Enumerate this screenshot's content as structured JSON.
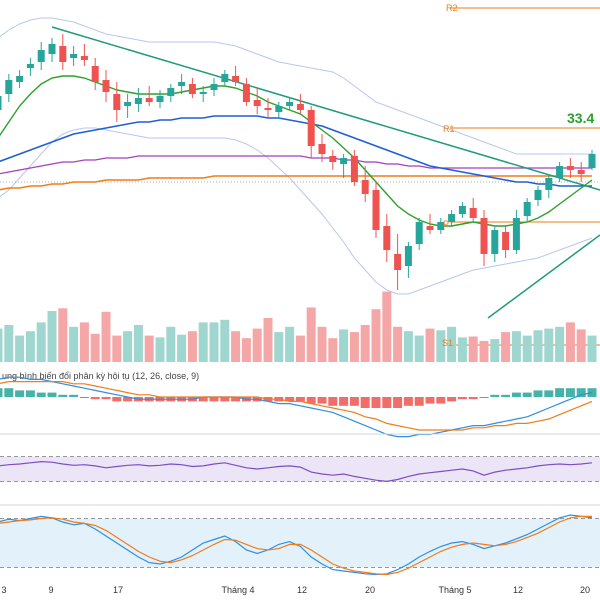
{
  "chart_data": {
    "type": "candlestick",
    "x_ticks": [
      "3",
      "9",
      "17",
      "Tháng 4",
      "12",
      "20",
      "Tháng 5",
      "12",
      "20"
    ],
    "colors": {
      "up": "#26a69a",
      "down": "#ef5350",
      "vol_up": "#9fd6cf",
      "vol_down": "#f4a7a6",
      "ma_short": "#2ca02c",
      "ma_mid": "#1f5fd6",
      "ma_long": "#a43fbf",
      "ma_200": "#ef7d1a",
      "bands": "#b9c6ef",
      "trend": "#1f9a7a",
      "pivot": "#ef7d1a",
      "macd_line": "#2f8fe0",
      "signal_line": "#ef7d1a",
      "rsi": "#7a4fc3",
      "rsi_band": "#ece4f7",
      "stoch_band": "#e3f1fb"
    },
    "pivot_labels": {
      "r2": "R2",
      "r1": "R1",
      "p": "P",
      "s1": "S1"
    },
    "price_label": "33.4",
    "macd_title": "ung bình biến đổi phân kỳ hội tụ (12, 26, close, 9)",
    "candles": [
      [
        84,
        96,
        80,
        91
      ],
      [
        92,
        102,
        88,
        99
      ],
      [
        98,
        104,
        95,
        101
      ],
      [
        105,
        110,
        101,
        107
      ],
      [
        108,
        118,
        104,
        114
      ],
      [
        112,
        120,
        108,
        117
      ],
      [
        116,
        122,
        104,
        108
      ],
      [
        110,
        116,
        106,
        112
      ],
      [
        111,
        117,
        106,
        109
      ],
      [
        106,
        110,
        94,
        98
      ],
      [
        99,
        104,
        88,
        93
      ],
      [
        92,
        98,
        78,
        84
      ],
      [
        86,
        92,
        80,
        88
      ],
      [
        87,
        95,
        83,
        90
      ],
      [
        90,
        96,
        86,
        88
      ],
      [
        88,
        94,
        85,
        91
      ],
      [
        91,
        97,
        88,
        95
      ],
      [
        96,
        102,
        92,
        98
      ],
      [
        97,
        100,
        90,
        92
      ],
      [
        92,
        96,
        88,
        93
      ],
      [
        94,
        100,
        91,
        97
      ],
      [
        98,
        104,
        96,
        102
      ],
      [
        101,
        106,
        96,
        98
      ],
      [
        97,
        100,
        86,
        88
      ],
      [
        89,
        95,
        82,
        86
      ],
      [
        85,
        90,
        80,
        84
      ],
      [
        83,
        88,
        80,
        86
      ],
      [
        86,
        90,
        84,
        88
      ],
      [
        87,
        92,
        82,
        84
      ],
      [
        84,
        86,
        60,
        66
      ],
      [
        67,
        72,
        58,
        62
      ],
      [
        61,
        64,
        54,
        58
      ],
      [
        57,
        62,
        50,
        60
      ],
      [
        61,
        64,
        46,
        48
      ],
      [
        49,
        56,
        38,
        42
      ],
      [
        44,
        48,
        20,
        24
      ],
      [
        26,
        32,
        8,
        14
      ],
      [
        12,
        22,
        -6,
        4
      ],
      [
        6,
        18,
        0,
        16
      ],
      [
        17,
        30,
        14,
        28
      ],
      [
        26,
        32,
        22,
        24
      ],
      [
        24,
        30,
        22,
        28
      ],
      [
        28,
        34,
        26,
        32
      ],
      [
        32,
        38,
        30,
        36
      ],
      [
        35,
        40,
        28,
        30
      ],
      [
        30,
        34,
        6,
        12
      ],
      [
        12,
        26,
        8,
        24
      ],
      [
        23,
        26,
        10,
        14
      ],
      [
        14,
        34,
        12,
        30
      ],
      [
        31,
        40,
        28,
        38
      ],
      [
        39,
        46,
        36,
        44
      ],
      [
        44,
        52,
        40,
        50
      ],
      [
        50,
        58,
        48,
        56
      ],
      [
        56,
        60,
        50,
        54
      ],
      [
        54,
        58,
        48,
        52
      ],
      [
        55,
        64,
        54,
        62
      ]
    ],
    "volume": [
      38,
      42,
      30,
      35,
      45,
      58,
      61,
      40,
      45,
      32,
      57,
      30,
      35,
      42,
      30,
      28,
      40,
      31,
      35,
      45,
      45,
      48,
      35,
      27,
      38,
      50,
      34,
      40,
      30,
      62,
      40,
      27,
      37,
      34,
      42,
      60,
      80,
      40,
      35,
      30,
      38,
      36,
      40,
      28,
      29,
      24,
      26,
      34,
      35,
      30,
      36,
      38,
      40,
      45,
      37,
      30
    ],
    "ma_short": [
      70,
      78,
      86,
      92,
      97,
      100,
      101,
      101,
      100,
      98,
      96,
      94,
      93,
      92,
      92,
      92,
      92,
      93,
      94,
      95,
      96,
      96,
      95,
      93,
      91,
      88,
      86,
      84,
      82,
      78,
      74,
      70,
      65,
      60,
      54,
      48,
      42,
      36,
      32,
      29,
      27,
      26,
      26,
      27,
      28,
      27,
      26,
      26,
      27,
      28,
      30,
      33,
      37,
      41,
      45,
      49
    ],
    "ma_mid": [
      58,
      60,
      62,
      64,
      66,
      68,
      70,
      72,
      73,
      74,
      75,
      76,
      77,
      78,
      78,
      79,
      79,
      80,
      80,
      80,
      81,
      81,
      81,
      81,
      81,
      80,
      80,
      79,
      78,
      77,
      76,
      74,
      72,
      70,
      68,
      66,
      64,
      62,
      60,
      58,
      56,
      55,
      54,
      53,
      52,
      51,
      50,
      49,
      48,
      48,
      47,
      47,
      46,
      46,
      46,
      46
    ],
    "ma_long": [
      52,
      53,
      54,
      55,
      56,
      57,
      58,
      58,
      59,
      59,
      60,
      60,
      60,
      61,
      61,
      61,
      61,
      61,
      61,
      61,
      61,
      61,
      61,
      61,
      61,
      61,
      61,
      61,
      61,
      60,
      60,
      60,
      59,
      59,
      58,
      58,
      57,
      57,
      56,
      56,
      55,
      55,
      55,
      55,
      55,
      55,
      55,
      55,
      55,
      55,
      55,
      55,
      55,
      55,
      55,
      55
    ],
    "ma_200": [
      44,
      45,
      45,
      46,
      46,
      47,
      47,
      48,
      48,
      48,
      49,
      49,
      49,
      49,
      50,
      50,
      50,
      50,
      50,
      50,
      51,
      51,
      51,
      51,
      51,
      51,
      51,
      51,
      51,
      51,
      51,
      51,
      51,
      51,
      51,
      51,
      51,
      51,
      51,
      51,
      51,
      51,
      51,
      51,
      51,
      51,
      51,
      51,
      51,
      51,
      51,
      51,
      51,
      51,
      51,
      51
    ],
    "band_upper": [
      120,
      124,
      127,
      129,
      130,
      130,
      129,
      128,
      126,
      124,
      122,
      121,
      120,
      119,
      118,
      118,
      118,
      118,
      118,
      118,
      118,
      117,
      116,
      114,
      112,
      110,
      108,
      107,
      106,
      105,
      104,
      103,
      100,
      96,
      92,
      88,
      86,
      84,
      82,
      80,
      78,
      76,
      74,
      72,
      70,
      68,
      66,
      64,
      62,
      62,
      62,
      62,
      62,
      62,
      62,
      62
    ],
    "band_lower": [
      40,
      44,
      50,
      56,
      62,
      68,
      72,
      74,
      75,
      75,
      74,
      73,
      72,
      71,
      70,
      70,
      70,
      70,
      70,
      70,
      70,
      70,
      69,
      67,
      64,
      60,
      55,
      50,
      44,
      38,
      32,
      25,
      18,
      10,
      4,
      -2,
      -6,
      -8,
      -8,
      -6,
      -4,
      -2,
      0,
      2,
      4,
      5,
      6,
      7,
      8,
      9,
      10,
      12,
      14,
      16,
      18,
      20
    ],
    "macd_hist": [
      4,
      4,
      3,
      3,
      2,
      2,
      1,
      1,
      0,
      -1,
      -1,
      -2,
      -2,
      -2,
      -2,
      -2,
      -2,
      -2,
      -2,
      -2,
      -2,
      -2,
      -2,
      -2,
      -2,
      -2,
      -2,
      -2,
      -2,
      -3,
      -3,
      -4,
      -4,
      -4,
      -5,
      -5,
      -5,
      -5,
      -4,
      -4,
      -3,
      -3,
      -2,
      -1,
      -1,
      0,
      1,
      1,
      2,
      2,
      3,
      3,
      4,
      4,
      4,
      4
    ],
    "macd_line": [
      8,
      9,
      9,
      8,
      8,
      7,
      6,
      5,
      4,
      3,
      2,
      1,
      0,
      -1,
      -1,
      -1,
      -1,
      -1,
      -1,
      0,
      0,
      0,
      0,
      -1,
      -1,
      -2,
      -3,
      -3,
      -4,
      -5,
      -6,
      -7,
      -9,
      -11,
      -13,
      -15,
      -17,
      -18,
      -18,
      -17,
      -17,
      -16,
      -15,
      -14,
      -13,
      -13,
      -12,
      -11,
      -10,
      -9,
      -7,
      -5,
      -3,
      -1,
      1,
      2
    ],
    "signal_line": [
      6,
      7,
      7,
      7,
      7,
      7,
      7,
      6,
      6,
      5,
      4,
      3,
      2,
      1,
      1,
      0,
      0,
      0,
      0,
      0,
      0,
      0,
      0,
      0,
      0,
      -1,
      -1,
      -2,
      -2,
      -3,
      -4,
      -5,
      -6,
      -7,
      -9,
      -10,
      -12,
      -13,
      -14,
      -15,
      -15,
      -15,
      -15,
      -15,
      -14,
      -14,
      -13,
      -13,
      -12,
      -12,
      -11,
      -10,
      -8,
      -6,
      -4,
      -2
    ],
    "rsi": [
      55,
      57,
      58,
      60,
      62,
      61,
      58,
      56,
      57,
      55,
      52,
      54,
      56,
      57,
      55,
      56,
      58,
      57,
      54,
      55,
      58,
      60,
      56,
      52,
      50,
      52,
      54,
      55,
      53,
      45,
      42,
      40,
      42,
      38,
      35,
      32,
      30,
      33,
      38,
      42,
      44,
      46,
      48,
      50,
      47,
      40,
      45,
      48,
      50,
      52,
      55,
      57,
      58,
      57,
      58,
      60
    ],
    "stoch_k": [
      80,
      84,
      82,
      85,
      88,
      86,
      80,
      76,
      78,
      70,
      60,
      50,
      40,
      30,
      22,
      20,
      24,
      30,
      40,
      50,
      55,
      60,
      52,
      40,
      35,
      40,
      48,
      52,
      45,
      30,
      20,
      12,
      10,
      8,
      6,
      5,
      6,
      12,
      20,
      30,
      38,
      45,
      50,
      52,
      48,
      42,
      46,
      50,
      56,
      62,
      70,
      78,
      86,
      90,
      88,
      86
    ],
    "stoch_d": [
      78,
      80,
      82,
      83,
      85,
      86,
      84,
      80,
      78,
      75,
      68,
      58,
      48,
      38,
      30,
      24,
      22,
      26,
      32,
      40,
      48,
      55,
      54,
      48,
      42,
      40,
      42,
      48,
      48,
      40,
      30,
      20,
      14,
      10,
      8,
      6,
      5,
      8,
      14,
      22,
      30,
      38,
      44,
      48,
      50,
      48,
      46,
      48,
      52,
      58,
      64,
      72,
      80,
      86,
      88,
      88
    ]
  }
}
